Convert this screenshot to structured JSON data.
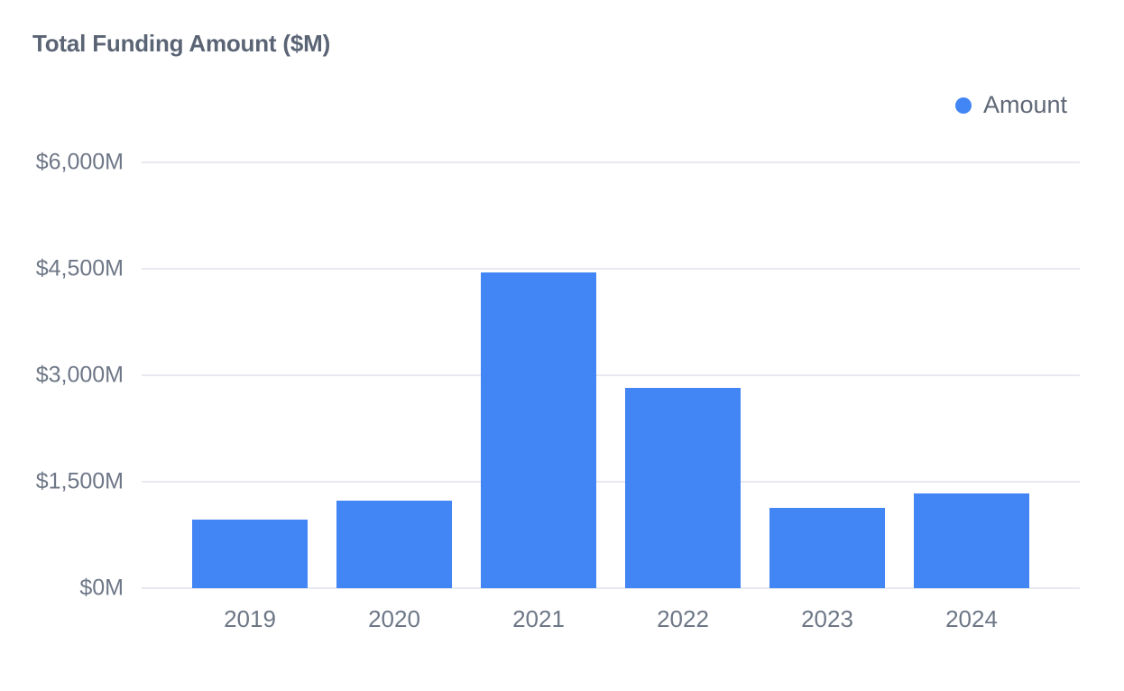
{
  "header": {
    "title": "Total Funding Amount ($M)"
  },
  "legend": {
    "items": [
      {
        "label": "Amount",
        "color": "#4285F4"
      }
    ],
    "position": "top-right"
  },
  "colors": {
    "bar": "#4285F4",
    "gridline": "#e7e9ef",
    "title_text": "#5a6474",
    "tick_text": "#6e7787",
    "legend_text": "#5f6877",
    "background": "#ffffff"
  },
  "chart_data": {
    "type": "bar",
    "title": "Total Funding Amount ($M)",
    "categories": [
      "2019",
      "2020",
      "2021",
      "2022",
      "2023",
      "2024"
    ],
    "series": [
      {
        "name": "Amount",
        "color": "#4285F4",
        "values": [
          970,
          1230,
          4450,
          2820,
          1130,
          1340
        ]
      }
    ],
    "xlabel": "",
    "ylabel": "",
    "ylim": [
      0,
      6000
    ],
    "yticks": [
      {
        "value": 0,
        "label": "$0M"
      },
      {
        "value": 1500,
        "label": "$1,500M"
      },
      {
        "value": 3000,
        "label": "$3,000M"
      },
      {
        "value": 4500,
        "label": "$4,500M"
      },
      {
        "value": 6000,
        "label": "$6,000M"
      }
    ],
    "grid": true,
    "legend_position": "top-right"
  }
}
